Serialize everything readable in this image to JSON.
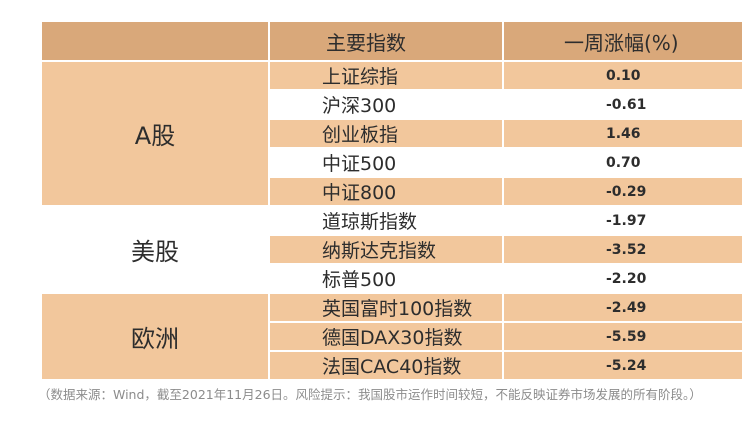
{
  "table": {
    "headers": {
      "market": "",
      "index": "主要指数",
      "change": "一周涨幅(%)"
    },
    "groups": [
      {
        "market": "A股",
        "rows": [
          {
            "index": "上证综指",
            "change": "0.10"
          },
          {
            "index": "沪深300",
            "change": "-0.61"
          },
          {
            "index": "创业板指",
            "change": "1.46"
          },
          {
            "index": "中证500",
            "change": "0.70"
          },
          {
            "index": "中证800",
            "change": "-0.29"
          }
        ]
      },
      {
        "market": "美股",
        "rows": [
          {
            "index": "道琼斯指数",
            "change": "-1.97"
          },
          {
            "index": "纳斯达克指数",
            "change": "-3.52"
          },
          {
            "index": "标普500",
            "change": "-2.20"
          }
        ]
      },
      {
        "market": "欧洲",
        "rows": [
          {
            "index": "英国富时100指数",
            "change": "-2.49"
          },
          {
            "index": "德国DAX30指数",
            "change": "-5.59"
          },
          {
            "index": "法国CAC40指数",
            "change": "-5.24"
          }
        ]
      }
    ]
  },
  "footnote": "（数据来源：Wind，截至2021年11月26日。风险提示：我国股市运作时间较短，不能反映证券市场发展的所有阶段。）",
  "colors": {
    "header": "#d9a87a",
    "band": "#f2c79c",
    "text": "#2d2d2d",
    "note": "#8c8c8c"
  }
}
